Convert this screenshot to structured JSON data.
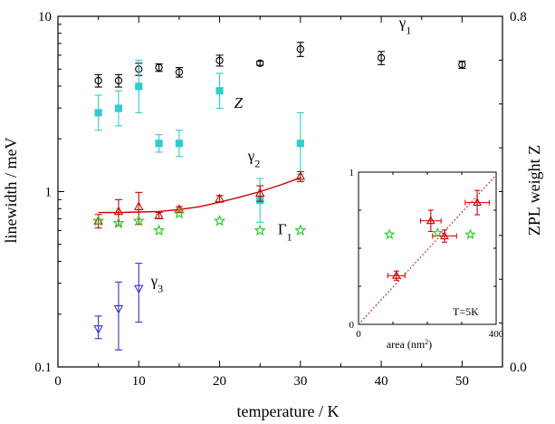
{
  "chart_data": [
    {
      "type": "scatter",
      "xlabel": "temperature / K",
      "ylabel": "linewidth / meV",
      "y2label": "ZPL weight Z",
      "xlim": [
        0,
        55
      ],
      "ylim": [
        0.1,
        10
      ],
      "yscale": "log",
      "y2lim": [
        0.0,
        0.8
      ],
      "xticks": [
        "0",
        "10",
        "20",
        "30",
        "40",
        "50"
      ],
      "yticks": [
        "0.1",
        "1",
        "10"
      ],
      "y2ticks": [
        "0.0",
        "0.8"
      ],
      "grid": false,
      "legend": "none",
      "series": [
        {
          "name": "γ1",
          "marker": "open-circle",
          "color": "#000000",
          "x": [
            5,
            7.5,
            10,
            12.5,
            15,
            20,
            25,
            30,
            40,
            50
          ],
          "y": [
            4.3,
            4.3,
            5.0,
            5.1,
            4.8,
            5.6,
            5.4,
            6.5,
            5.8,
            5.3
          ],
          "err": [
            0.35,
            0.35,
            0.4,
            0.25,
            0.3,
            0.4,
            0.15,
            0.6,
            0.5,
            0.25
          ]
        },
        {
          "name": "Z",
          "axis": "right",
          "marker": "filled-square",
          "color": "#33cccc",
          "x": [
            5,
            7.5,
            10,
            12.5,
            15,
            20,
            25,
            30
          ],
          "y": [
            0.58,
            0.59,
            0.64,
            0.51,
            0.51,
            0.63,
            0.38,
            0.51
          ],
          "err": [
            0.04,
            0.04,
            0.06,
            0.02,
            0.03,
            0.04,
            0.05,
            0.07
          ]
        },
        {
          "name": "γ2",
          "marker": "open-triangle-up",
          "color": "#cc0000",
          "x": [
            5,
            7.5,
            10,
            12.5,
            15,
            20,
            25,
            30
          ],
          "y": [
            0.68,
            0.77,
            0.82,
            0.73,
            0.79,
            0.91,
            0.98,
            1.22
          ],
          "err": [
            0.06,
            0.13,
            0.17,
            0.03,
            0.03,
            0.04,
            0.1,
            0.08
          ]
        },
        {
          "name": "γ2 fit",
          "line": true,
          "color": "#cc0000",
          "x": [
            5,
            7.5,
            10,
            12.5,
            15,
            17.5,
            20,
            22.5,
            25,
            27.5,
            30
          ],
          "y": [
            0.76,
            0.76,
            0.765,
            0.77,
            0.79,
            0.82,
            0.87,
            0.93,
            1.0,
            1.09,
            1.2
          ]
        },
        {
          "name": "Γ1",
          "marker": "open-star",
          "color": "#33cc33",
          "x": [
            5,
            7.5,
            10,
            12.5,
            15,
            20,
            25,
            30
          ],
          "y": [
            0.68,
            0.66,
            0.68,
            0.6,
            0.75,
            0.68,
            0.6,
            0.6
          ]
        },
        {
          "name": "γ3",
          "marker": "open-triangle-down",
          "color": "#3333cc",
          "x": [
            5,
            7.5,
            10
          ],
          "y": [
            0.165,
            0.215,
            0.28
          ],
          "err_lo": [
            0.02,
            0.09,
            0.1
          ],
          "err_hi": [
            0.03,
            0.09,
            0.11
          ]
        }
      ],
      "annotations": [
        {
          "text": "γ",
          "sub": "1",
          "x": 42.2,
          "y": 8.6,
          "color": "#000000"
        },
        {
          "text": "Z",
          "sub": "",
          "x": 21.8,
          "y": 3.0,
          "color": "#000000",
          "italic": true
        },
        {
          "text": "γ",
          "sub": "2",
          "x": 23.5,
          "y": 1.5,
          "color": "#000000"
        },
        {
          "text": "Γ",
          "sub": "1",
          "x": 27.2,
          "y": 0.57,
          "color": "#000000"
        },
        {
          "text": "γ",
          "sub": "3",
          "x": 11.5,
          "y": 0.29,
          "color": "#000000"
        }
      ]
    },
    {
      "type": "scatter",
      "inset": true,
      "xlabel": "area (nm",
      "xlabel_sup": "2",
      "xlabel_end": ")",
      "xlim": [
        0,
        400
      ],
      "ylim": [
        0,
        1
      ],
      "xticks": [
        "0",
        "400"
      ],
      "yticks": [
        "0",
        "1"
      ],
      "annotation": "T=5K",
      "series": [
        {
          "marker": "open-triangle-up",
          "color": "#cc0000",
          "x": [
            110,
            210,
            250,
            345
          ],
          "y": [
            0.32,
            0.68,
            0.58,
            0.8
          ],
          "xerr": [
            25,
            30,
            35,
            35
          ],
          "yerr": [
            0.03,
            0.07,
            0.04,
            0.08
          ]
        },
        {
          "marker": "open-star",
          "color": "#33cc33",
          "x": [
            90,
            230,
            325
          ],
          "y": [
            0.59,
            0.6,
            0.59
          ]
        },
        {
          "line": "dotted",
          "color": "#cc0000",
          "x": [
            0,
            400
          ],
          "y": [
            0,
            0.98
          ]
        }
      ]
    }
  ]
}
